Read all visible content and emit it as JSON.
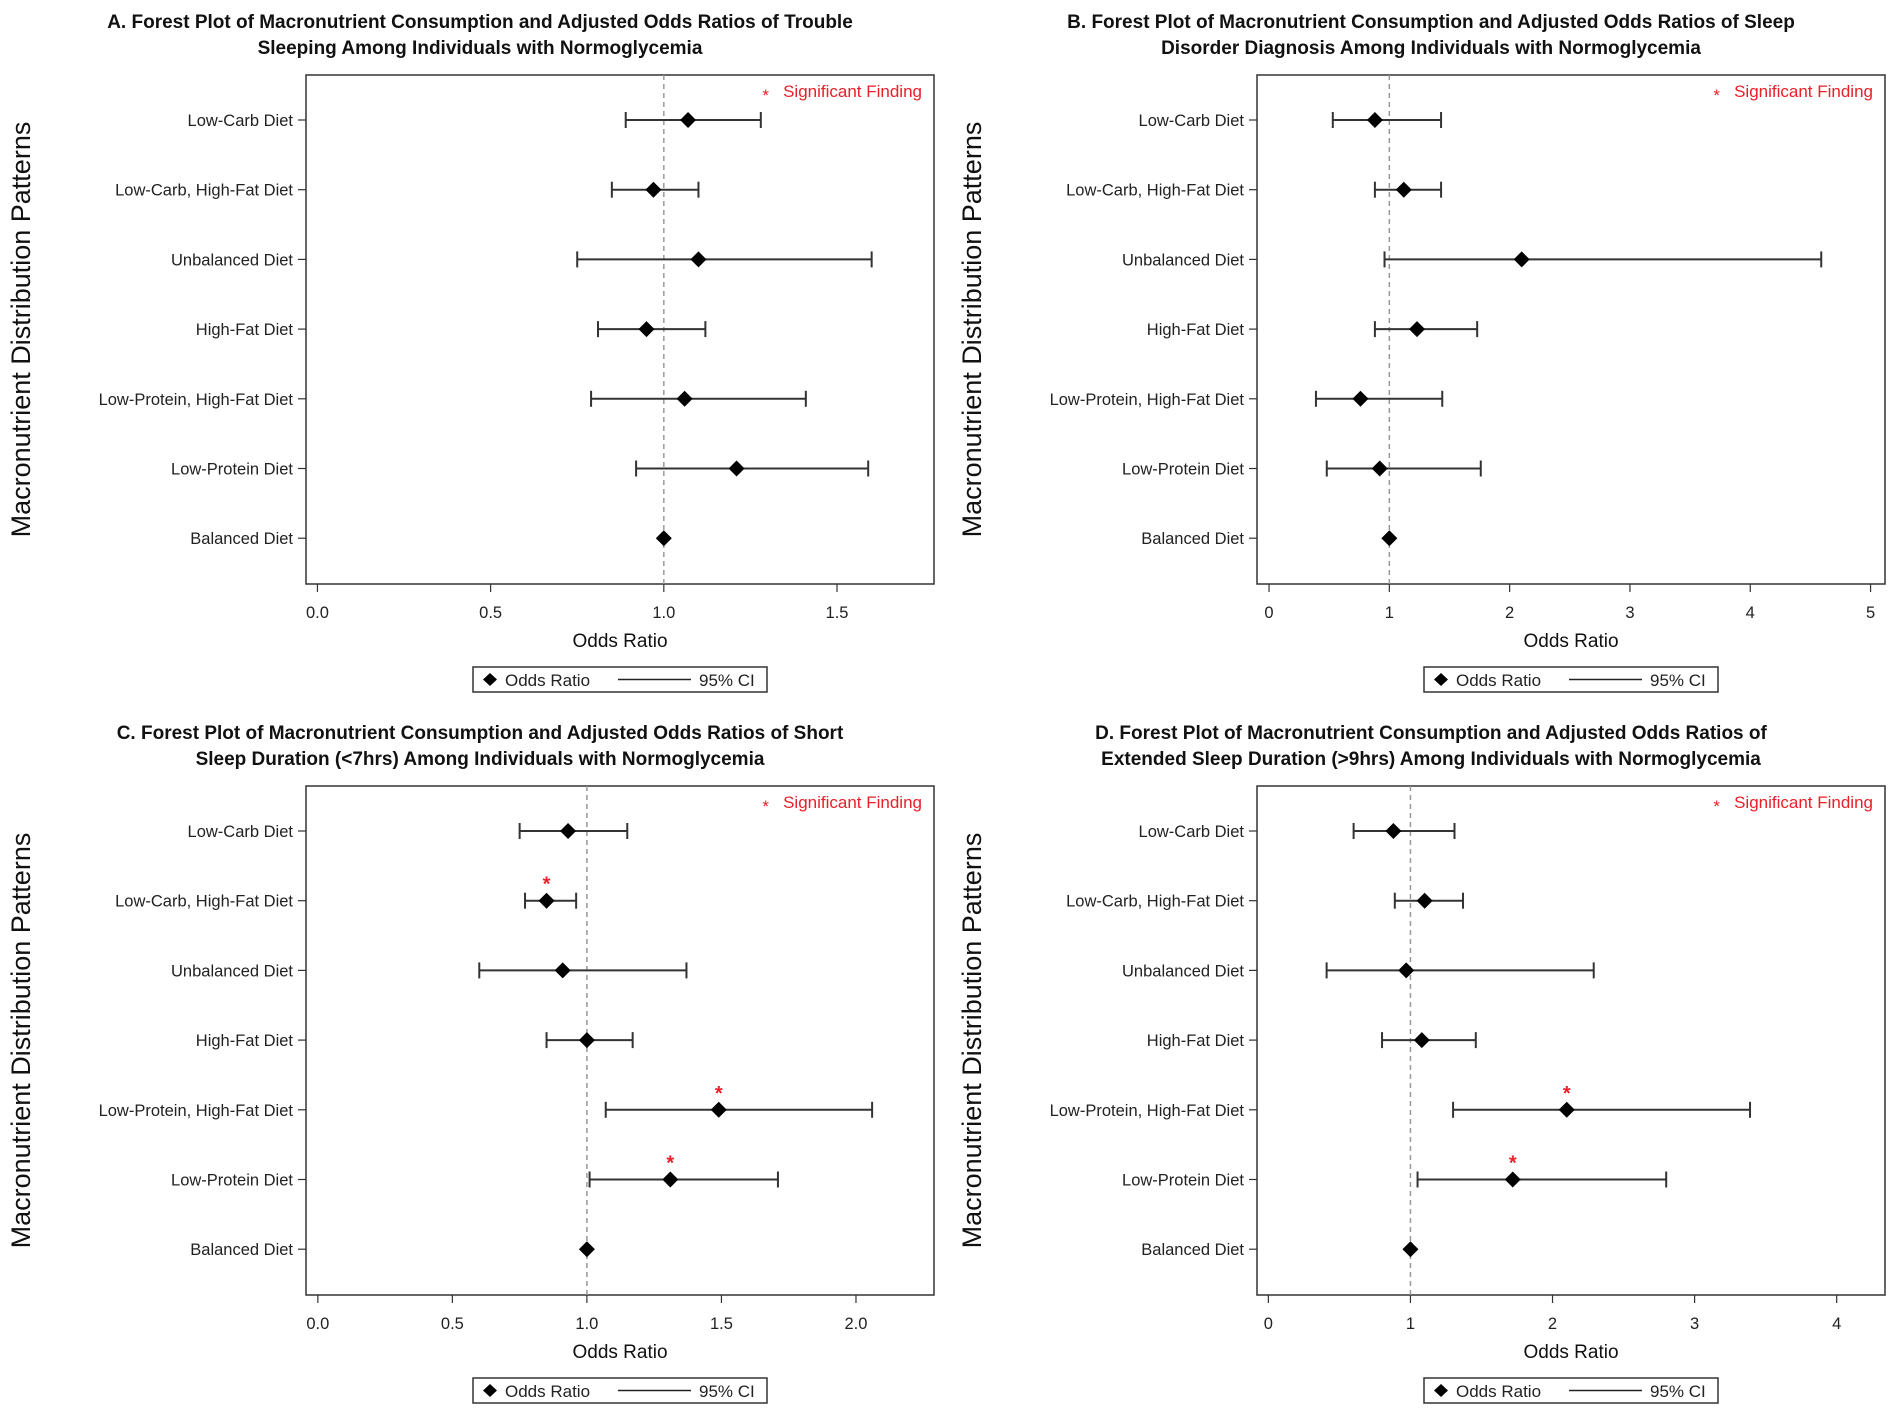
{
  "legend": {
    "marker_label": "Odds Ratio",
    "line_label": "95% CI"
  },
  "significance_note": "Significant Finding",
  "significance_symbol": "*",
  "colors": {
    "marker": "#000000",
    "ci": "#333333",
    "reference_line": "#999999",
    "significant": "#e8202a"
  },
  "chart_data": [
    {
      "type": "forest",
      "title": [
        "A. Forest Plot of Macronutrient Consumption and Adjusted Odds Ratios of Trouble",
        "Sleeping Among Individuals with Normoglycemia"
      ],
      "xlabel": "Odds Ratio",
      "ylabel": "Macronutrient Distribution Patterns",
      "xlim": [
        -0.033,
        1.78
      ],
      "xticks": [
        "0.0",
        "0.5",
        "1.0",
        "1.5"
      ],
      "xtick_values": [
        0,
        0.5,
        1.0,
        1.5
      ],
      "reference": 1.0,
      "categories": [
        "Low-Carb Diet",
        "Low-Carb, High-Fat Diet",
        "Unbalanced Diet",
        "High-Fat Diet",
        "Low-Protein, High-Fat Diet",
        "Low-Protein Diet",
        "Balanced Diet"
      ],
      "or": [
        1.07,
        0.97,
        1.1,
        0.95,
        1.06,
        1.21,
        1.0
      ],
      "lo": [
        0.89,
        0.85,
        0.75,
        0.81,
        0.79,
        0.92,
        null
      ],
      "hi": [
        1.28,
        1.1,
        1.6,
        1.12,
        1.41,
        1.59,
        null
      ],
      "significant": [
        false,
        false,
        false,
        false,
        false,
        false,
        false
      ]
    },
    {
      "type": "forest",
      "title": [
        "B. Forest Plot of Macronutrient Consumption and Adjusted Odds Ratios of Sleep",
        "Disorder Diagnosis Among Individuals with Normoglycemia"
      ],
      "xlabel": "Odds Ratio",
      "ylabel": "Macronutrient Distribution Patterns",
      "xlim": [
        -0.1,
        5.12
      ],
      "xticks": [
        "0",
        "1",
        "2",
        "3",
        "4",
        "5"
      ],
      "xtick_values": [
        0,
        1,
        2,
        3,
        4,
        5
      ],
      "reference": 1.0,
      "categories": [
        "Low-Carb Diet",
        "Low-Carb, High-Fat Diet",
        "Unbalanced Diet",
        "High-Fat Diet",
        "Low-Protein, High-Fat Diet",
        "Low-Protein Diet",
        "Balanced Diet"
      ],
      "or": [
        0.88,
        1.12,
        2.1,
        1.23,
        0.76,
        0.92,
        1.0
      ],
      "lo": [
        0.53,
        0.88,
        0.96,
        0.88,
        0.39,
        0.48,
        null
      ],
      "hi": [
        1.43,
        1.43,
        4.59,
        1.73,
        1.44,
        1.76,
        null
      ],
      "significant": [
        false,
        false,
        false,
        false,
        false,
        false,
        false
      ]
    },
    {
      "type": "forest",
      "title": [
        "C. Forest Plot of Macronutrient Consumption and Adjusted Odds Ratios of Short",
        "Sleep Duration (<7hrs) Among Individuals with Normoglycemia"
      ],
      "xlabel": "Odds Ratio",
      "ylabel": "Macronutrient Distribution Patterns",
      "xlim": [
        -0.044,
        2.29
      ],
      "xticks": [
        "0.0",
        "0.5",
        "1.0",
        "1.5",
        "2.0"
      ],
      "xtick_values": [
        0,
        0.5,
        1.0,
        1.5,
        2.0
      ],
      "reference": 1.0,
      "categories": [
        "Low-Carb Diet",
        "Low-Carb, High-Fat Diet",
        "Unbalanced Diet",
        "High-Fat Diet",
        "Low-Protein, High-Fat Diet",
        "Low-Protein Diet",
        "Balanced Diet"
      ],
      "or": [
        0.93,
        0.85,
        0.91,
        1.0,
        1.49,
        1.31,
        1.0
      ],
      "lo": [
        0.75,
        0.77,
        0.6,
        0.85,
        1.07,
        1.01,
        null
      ],
      "hi": [
        1.15,
        0.96,
        1.37,
        1.17,
        2.06,
        1.71,
        null
      ],
      "significant": [
        false,
        true,
        false,
        false,
        true,
        true,
        false
      ]
    },
    {
      "type": "forest",
      "title": [
        "D. Forest Plot of Macronutrient Consumption and Adjusted Odds Ratios of",
        "Extended Sleep Duration (>9hrs) Among Individuals with Normoglycemia"
      ],
      "xlabel": "Odds Ratio",
      "ylabel": "Macronutrient Distribution Patterns",
      "xlim": [
        -0.08,
        4.34
      ],
      "xticks": [
        "0",
        "1",
        "2",
        "3",
        "4"
      ],
      "xtick_values": [
        0,
        1,
        2,
        3,
        4
      ],
      "reference": 1.0,
      "categories": [
        "Low-Carb Diet",
        "Low-Carb, High-Fat Diet",
        "Unbalanced Diet",
        "High-Fat Diet",
        "Low-Protein, High-Fat Diet",
        "Low-Protein Diet",
        "Balanced Diet"
      ],
      "or": [
        0.88,
        1.1,
        0.97,
        1.08,
        2.1,
        1.72,
        1.0
      ],
      "lo": [
        0.6,
        0.89,
        0.41,
        0.8,
        1.3,
        1.05,
        null
      ],
      "hi": [
        1.31,
        1.37,
        2.29,
        1.46,
        3.39,
        2.8,
        null
      ],
      "significant": [
        false,
        false,
        false,
        false,
        true,
        true,
        false
      ]
    }
  ]
}
